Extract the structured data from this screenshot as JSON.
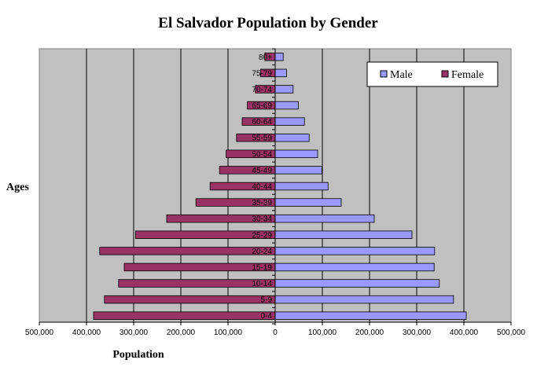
{
  "chart_data": {
    "type": "bar",
    "orientation": "horizontal",
    "title": "El Salvador Population by Gender",
    "xlabel": "Population",
    "ylabel": "Ages",
    "xlim": [
      -500000,
      500000
    ],
    "xticks": [
      -500000,
      -400000,
      -300000,
      -200000,
      -100000,
      0,
      100000,
      200000,
      300000,
      400000,
      500000
    ],
    "xtick_labels": [
      "500,000",
      "400,000",
      "300,000",
      "200,000",
      "100,000",
      "0",
      "100,000",
      "200,000",
      "300,000",
      "400,000",
      "500,000"
    ],
    "grid": "vertical",
    "legend_position": "top-right",
    "categories": [
      "0-4",
      "5-9",
      "10-14",
      "15-19",
      "20-24",
      "25-29",
      "30-34",
      "35-39",
      "40-44",
      "45-49",
      "50-54",
      "55-59",
      "60-64",
      "65-69",
      "70-74",
      "75-79",
      "80+"
    ],
    "series": [
      {
        "name": "Male",
        "color": "#9999ff",
        "values": [
          405000,
          378000,
          348000,
          337000,
          338000,
          290000,
          210000,
          140000,
          112000,
          99000,
          90000,
          72000,
          62000,
          49000,
          38000,
          24000,
          17000
        ]
      },
      {
        "name": "Female",
        "color": "#993366",
        "values": [
          -385000,
          -362000,
          -332000,
          -320000,
          -372000,
          -296000,
          -230000,
          -168000,
          -138000,
          -118000,
          -104000,
          -82000,
          -70000,
          -59000,
          -42000,
          -31000,
          -22000
        ]
      }
    ]
  },
  "colors": {
    "plot_background": "#c0c0c0",
    "gridline": "#000000",
    "male": "#9999ff",
    "female": "#993366"
  }
}
